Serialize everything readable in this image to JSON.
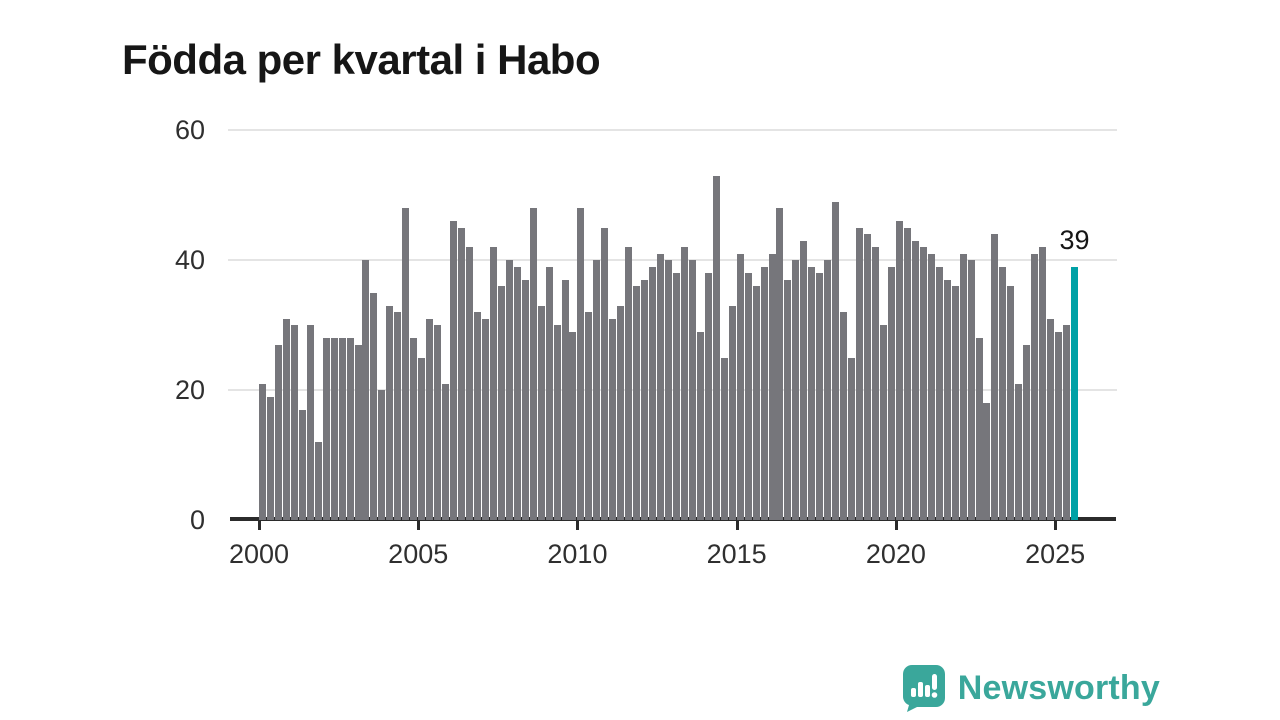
{
  "title": "Födda per kvartal i Habo",
  "y_axis": {
    "tick_labels": [
      "60",
      "40",
      "20",
      "0"
    ],
    "tick_values": [
      60,
      40,
      20,
      0
    ]
  },
  "x_axis": {
    "ticks": [
      {
        "label": "2000",
        "year": 2000
      },
      {
        "label": "2005",
        "year": 2005
      },
      {
        "label": "2010",
        "year": 2010
      },
      {
        "label": "2015",
        "year": 2015
      },
      {
        "label": "2020",
        "year": 2020
      },
      {
        "label": "2025",
        "year": 2025
      }
    ]
  },
  "chart_data": {
    "type": "bar",
    "title": "Födda per kvartal i Habo",
    "frequency": "quarterly",
    "start_period": "2000 Q1",
    "end_period": "2025 Q3",
    "ylim": [
      0,
      60
    ],
    "grid": "horizontal",
    "bar_color": "#76767b",
    "values": [
      21,
      19,
      27,
      31,
      30,
      17,
      30,
      12,
      28,
      28,
      28,
      28,
      27,
      40,
      35,
      20,
      33,
      32,
      48,
      28,
      25,
      31,
      30,
      21,
      46,
      45,
      42,
      32,
      31,
      42,
      36,
      40,
      39,
      37,
      48,
      33,
      39,
      30,
      37,
      29,
      48,
      32,
      40,
      45,
      31,
      33,
      42,
      36,
      37,
      39,
      41,
      40,
      38,
      42,
      40,
      29,
      38,
      53,
      25,
      33,
      41,
      38,
      36,
      39,
      41,
      48,
      37,
      40,
      43,
      39,
      38,
      40,
      49,
      32,
      25,
      45,
      44,
      42,
      30,
      39,
      46,
      45,
      43,
      42,
      41,
      39,
      37,
      36,
      41,
      40,
      28,
      18,
      44,
      39,
      36,
      21,
      27,
      41,
      42,
      31,
      29,
      30,
      39
    ],
    "highlight": {
      "index": 102,
      "period": "2025 Q3",
      "value": 39,
      "label": "39",
      "color": "#00a1a6"
    }
  },
  "branding": {
    "wordmark": "Newsworthy",
    "color": "#3aa79b",
    "icon": "newsworthy-bar-chart-bubble-icon"
  }
}
